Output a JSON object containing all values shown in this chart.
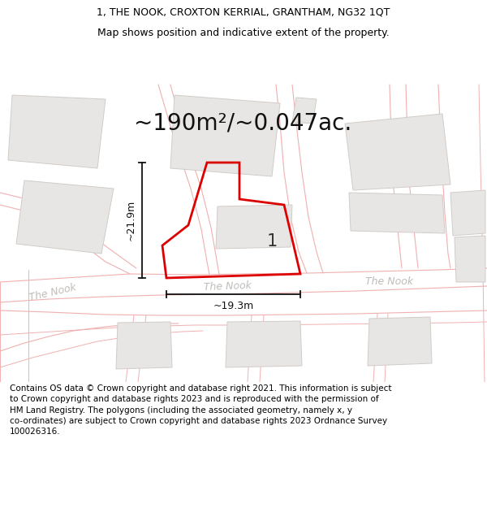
{
  "title_line1": "1, THE NOOK, CROXTON KERRIAL, GRANTHAM, NG32 1QT",
  "title_line2": "Map shows position and indicative extent of the property.",
  "area_text": "~190m²/~0.047ac.",
  "dim_vertical": "~21.9m",
  "dim_horizontal": "~19.3m",
  "label_number": "1",
  "road_label_left": "The Nook",
  "road_label_center": "The Nook",
  "road_label_right": "The Nook",
  "background_color": "#ffffff",
  "map_background": "#f7f4f2",
  "building_fill": "#e8e6e4",
  "building_stroke": "#d0ccc8",
  "road_color": "#f0b0b0",
  "road_lw": 0.9,
  "highlight_color": "#dd0000",
  "highlight_lw": 2.0,
  "dim_color": "#111111",
  "road_label_color": "#c0bcb8",
  "footer_text": "Contains OS data © Crown copyright and database right 2021. This information is subject to Crown copyright and database rights 2023 and is reproduced with the permission of HM Land Registry. The polygons (including the associated geometry, namely x, y co-ordinates) are subject to Crown copyright and database rights 2023 Ordnance Survey 100026316.",
  "title_fs": 9,
  "area_fs": 20,
  "dim_fs": 9,
  "road_label_fs": 9,
  "number_fs": 15,
  "footer_fs": 7.5
}
